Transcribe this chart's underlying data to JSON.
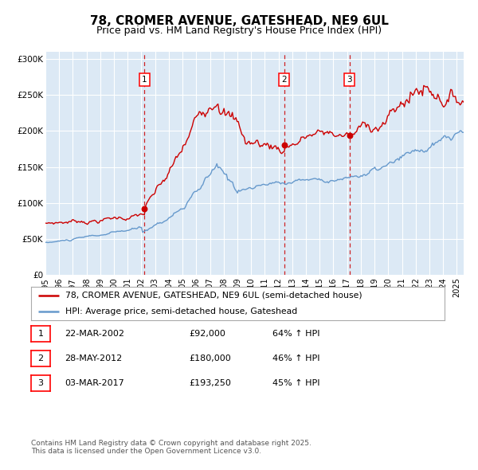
{
  "title": "78, CROMER AVENUE, GATESHEAD, NE9 6UL",
  "subtitle": "Price paid vs. HM Land Registry's House Price Index (HPI)",
  "legend_red": "78, CROMER AVENUE, GATESHEAD, NE9 6UL (semi-detached house)",
  "legend_blue": "HPI: Average price, semi-detached house, Gateshead",
  "footer": "Contains HM Land Registry data © Crown copyright and database right 2025.\nThis data is licensed under the Open Government Licence v3.0.",
  "transactions": [
    {
      "num": 1,
      "date": "22-MAR-2002",
      "price": "£92,000",
      "pct": "64% ↑ HPI"
    },
    {
      "num": 2,
      "date": "28-MAY-2012",
      "price": "£180,000",
      "pct": "46% ↑ HPI"
    },
    {
      "num": 3,
      "date": "03-MAR-2017",
      "price": "£193,250",
      "pct": "45% ↑ HPI"
    }
  ],
  "vline_dates": [
    2002.22,
    2012.41,
    2017.17
  ],
  "dot_dates": [
    2002.22,
    2012.41,
    2017.17
  ],
  "dot_prices": [
    92000,
    180000,
    193250
  ],
  "ylim": [
    0,
    310000
  ],
  "xlim_start": 1995.0,
  "xlim_end": 2025.5,
  "bg_color": "#dce9f5",
  "grid_color": "#ffffff",
  "red_color": "#cc0000",
  "blue_color": "#6699cc",
  "vline_color": "#cc0000"
}
